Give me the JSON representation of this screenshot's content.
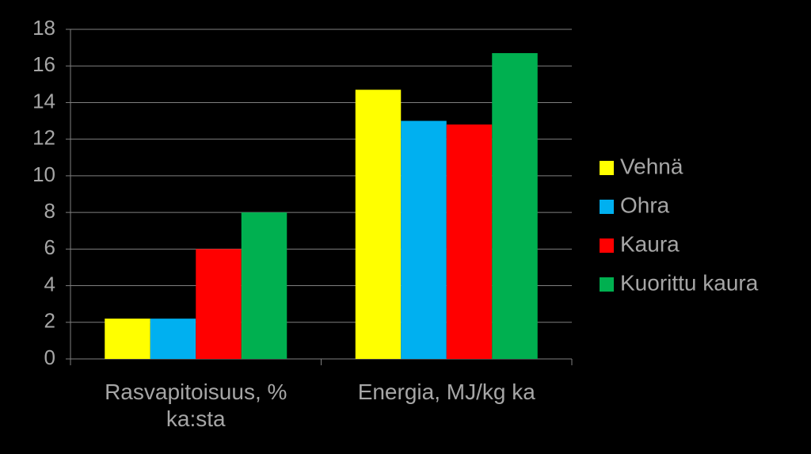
{
  "chart_data": {
    "type": "bar",
    "categories": [
      "Rasvapitoisuus, % ka:sta",
      "Energia, MJ/kg ka"
    ],
    "series": [
      {
        "name": "Vehnä",
        "color": "#ffff00",
        "values": [
          2.2,
          14.7
        ]
      },
      {
        "name": "Ohra",
        "color": "#00b0f0",
        "values": [
          2.2,
          13.0
        ]
      },
      {
        "name": "Kaura",
        "color": "#ff0000",
        "values": [
          6.0,
          12.8
        ]
      },
      {
        "name": "Kuorittu kaura",
        "color": "#00b050",
        "values": [
          8.0,
          16.7
        ]
      }
    ],
    "ylim": [
      0,
      18
    ],
    "yticks": [
      0,
      2,
      4,
      6,
      8,
      10,
      12,
      14,
      16,
      18
    ],
    "grid": true,
    "legend": "right"
  }
}
